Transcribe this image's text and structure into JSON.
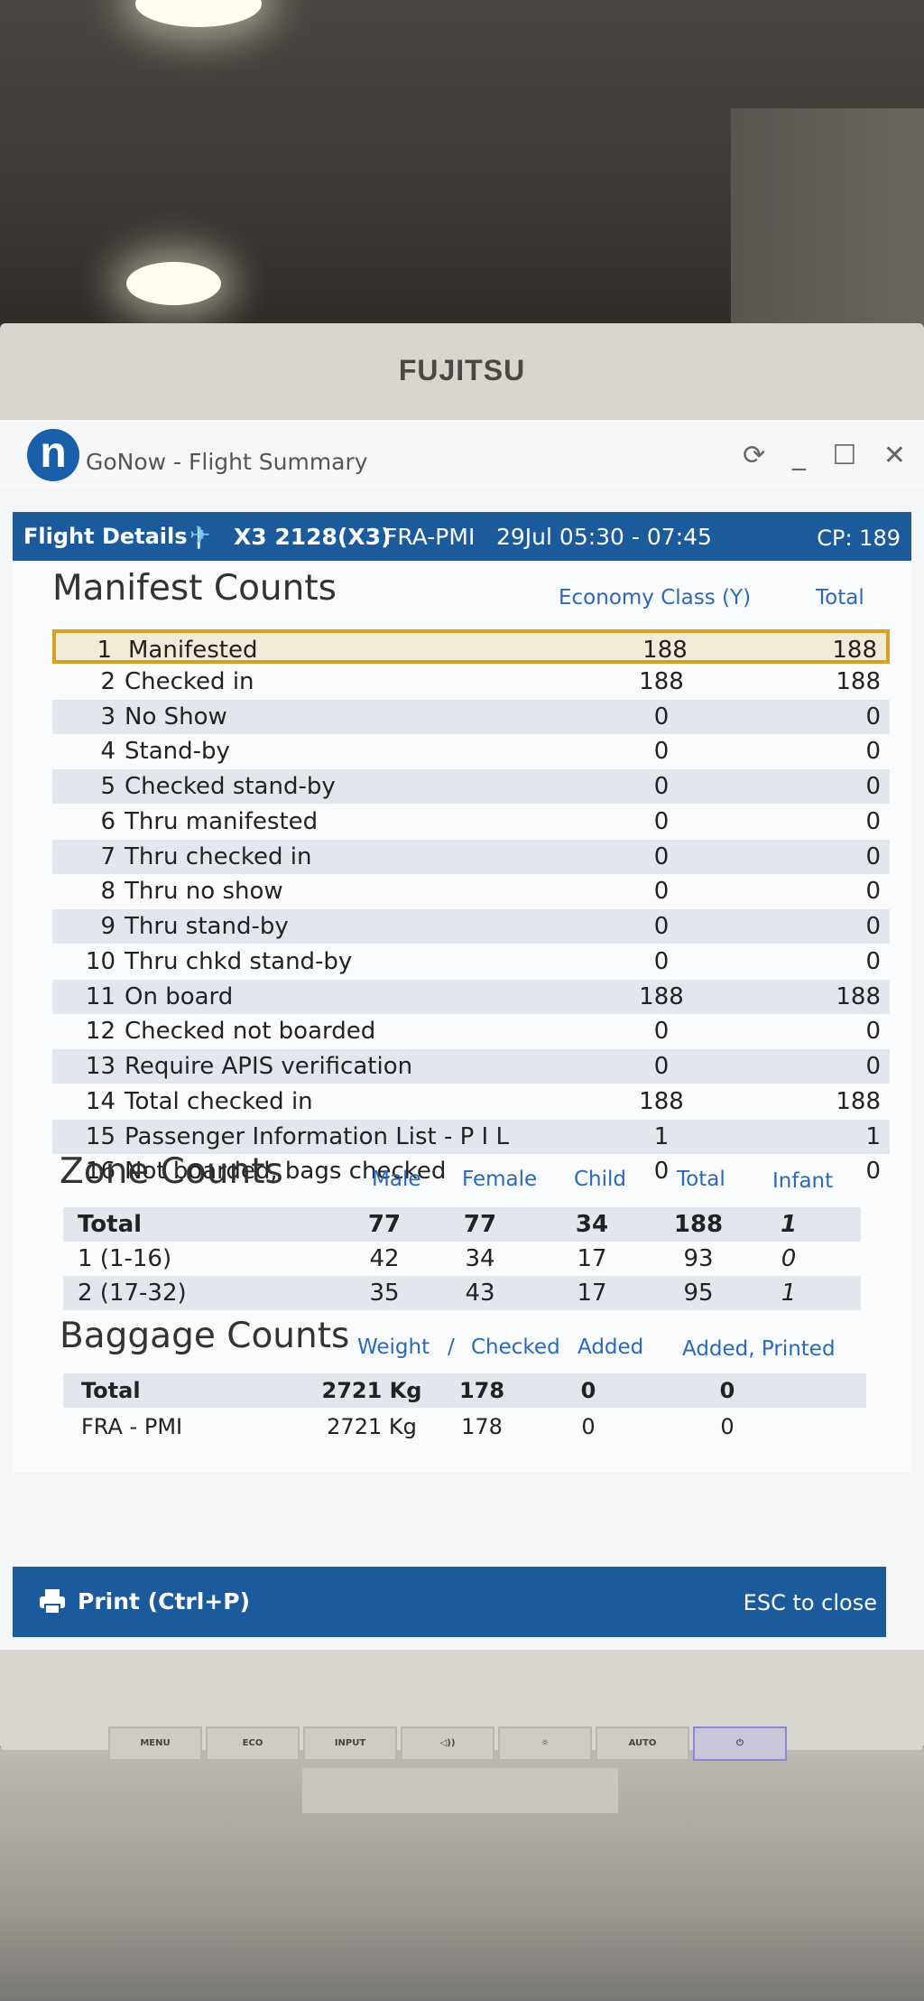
{
  "monitor": {
    "brand": "FUJITSU"
  },
  "window": {
    "app_logo": "n",
    "title": "GoNow - Flight Summary",
    "controls": {
      "refresh": "⟳",
      "minimize": "_",
      "maximize": "☐",
      "close": "✕"
    }
  },
  "flight": {
    "label": "Flight Details |",
    "flight_no": "X3 2128(X3)",
    "route": "FRA-PMI",
    "time": "29Jul 05:30 - 07:45",
    "cp": "CP: 189"
  },
  "manifest": {
    "title": "Manifest Counts",
    "col_class": "Economy Class (Y)",
    "col_total": "Total",
    "rows": [
      {
        "num": "1",
        "label": "Manifested",
        "eco": "188",
        "total": "188"
      },
      {
        "num": "2",
        "label": "Checked in",
        "eco": "188",
        "total": "188"
      },
      {
        "num": "3",
        "label": "No Show",
        "eco": "0",
        "total": "0"
      },
      {
        "num": "4",
        "label": "Stand-by",
        "eco": "0",
        "total": "0"
      },
      {
        "num": "5",
        "label": "Checked stand-by",
        "eco": "0",
        "total": "0"
      },
      {
        "num": "6",
        "label": "Thru manifested",
        "eco": "0",
        "total": "0"
      },
      {
        "num": "7",
        "label": "Thru checked in",
        "eco": "0",
        "total": "0"
      },
      {
        "num": "8",
        "label": "Thru no show",
        "eco": "0",
        "total": "0"
      },
      {
        "num": "9",
        "label": "Thru stand-by",
        "eco": "0",
        "total": "0"
      },
      {
        "num": "10",
        "label": "Thru chkd stand-by",
        "eco": "0",
        "total": "0"
      },
      {
        "num": "11",
        "label": "On board",
        "eco": "188",
        "total": "188"
      },
      {
        "num": "12",
        "label": "Checked not boarded",
        "eco": "0",
        "total": "0"
      },
      {
        "num": "13",
        "label": "Require APIS verification",
        "eco": "0",
        "total": "0"
      },
      {
        "num": "14",
        "label": "Total checked in",
        "eco": "188",
        "total": "188"
      },
      {
        "num": "15",
        "label": "Passenger Information List - P I L",
        "eco": "1",
        "total": "1"
      },
      {
        "num": "16",
        "label": "Not boarded, bags checked",
        "eco": "0",
        "total": "0"
      }
    ]
  },
  "zone": {
    "title": "Zone Counts",
    "headers": [
      "Male",
      "Female",
      "Child",
      "Total",
      "Infant"
    ],
    "rows": [
      {
        "label": "Total",
        "male": "77",
        "female": "77",
        "child": "34",
        "total": "188",
        "infant": "1"
      },
      {
        "label": "1 (1-16)",
        "male": "42",
        "female": "34",
        "child": "17",
        "total": "93",
        "infant": "0"
      },
      {
        "label": "2 (17-32)",
        "male": "35",
        "female": "43",
        "child": "17",
        "total": "95",
        "infant": "1"
      }
    ]
  },
  "baggage": {
    "title": "Baggage Counts",
    "headers": {
      "weight": "Weight",
      "sep": "/",
      "checked": "Checked",
      "added": "Added",
      "added_printed": "Added, Printed"
    },
    "rows": [
      {
        "label": "Total",
        "weight": "2721 Kg",
        "checked": "178",
        "added": "0",
        "added_printed": "0"
      },
      {
        "label": "FRA - PMI",
        "weight": "2721 Kg",
        "checked": "178",
        "added": "0",
        "added_printed": "0"
      }
    ]
  },
  "footer": {
    "print": "Print (Ctrl+P)",
    "esc": "ESC to close"
  },
  "monitor_buttons": [
    "MENU",
    "ECO",
    "INPUT",
    "◁))",
    "☼",
    "AUTO",
    "⏻"
  ],
  "colors": {
    "accent": "#1b5b9c",
    "highlight": "#d8a020",
    "header_text": "#2a69b8"
  }
}
